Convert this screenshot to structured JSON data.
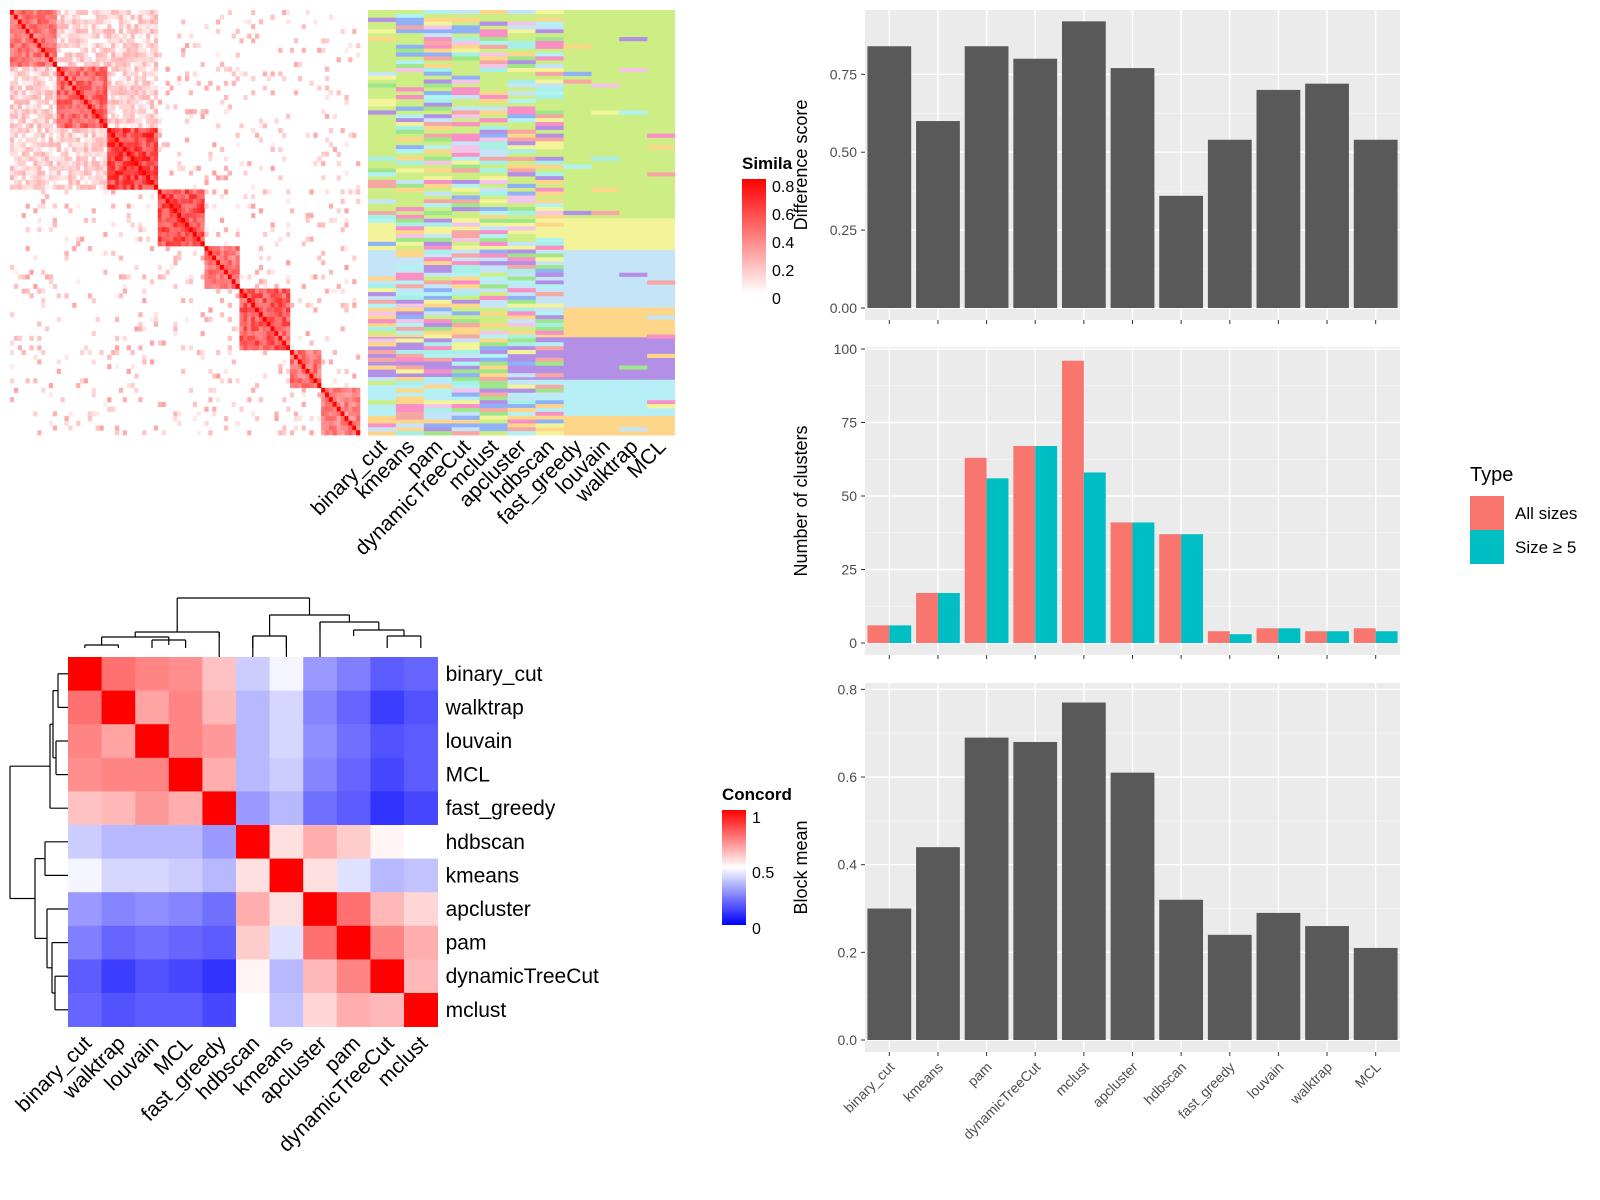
{
  "methods_similarity_order": [
    "binary_cut",
    "kmeans",
    "pam",
    "dynamicTreeCut",
    "mclust",
    "apcluster",
    "hdbscan",
    "fast_greedy",
    "louvain",
    "walktrap",
    "MCL"
  ],
  "similarity_legend": {
    "title": "Simila",
    "ticks": [
      "0.8",
      "0.6",
      "0.4",
      "0.2",
      "0"
    ],
    "colors": [
      "#ffffff",
      "#ff0000"
    ]
  },
  "concordance": {
    "legend": {
      "title": "Concord",
      "ticks": [
        "1",
        "0.5",
        "0"
      ],
      "colors": [
        "#0000ff",
        "#ffffff",
        "#ff0000"
      ]
    },
    "row_labels": [
      "binary_cut",
      "walktrap",
      "louvain",
      "MCL",
      "fast_greedy",
      "hdbscan",
      "kmeans",
      "apcluster",
      "pam",
      "dynamicTreeCut",
      "mclust"
    ],
    "col_labels": [
      "binary_cut",
      "walktrap",
      "louvain",
      "MCL",
      "fast_greedy",
      "hdbscan",
      "kmeans",
      "apcluster",
      "pam",
      "dynamicTreeCut",
      "mclust"
    ]
  },
  "chart_data": [
    {
      "type": "heatmap",
      "name": "similarity-matrix",
      "legend_title": "Simila",
      "value_range": [
        0,
        0.8
      ]
    },
    {
      "type": "heatmap",
      "name": "concordance-matrix",
      "legend_title": "Concord",
      "labels": [
        "binary_cut",
        "walktrap",
        "louvain",
        "MCL",
        "fast_greedy",
        "hdbscan",
        "kmeans",
        "apcluster",
        "pam",
        "dynamicTreeCut",
        "mclust"
      ],
      "values": [
        [
          1.0,
          0.78,
          0.74,
          0.72,
          0.62,
          0.4,
          0.48,
          0.3,
          0.25,
          0.18,
          0.2
        ],
        [
          0.78,
          1.0,
          0.68,
          0.74,
          0.64,
          0.36,
          0.42,
          0.26,
          0.2,
          0.12,
          0.16
        ],
        [
          0.74,
          0.68,
          1.0,
          0.74,
          0.7,
          0.36,
          0.42,
          0.28,
          0.22,
          0.16,
          0.18
        ],
        [
          0.72,
          0.74,
          0.74,
          1.0,
          0.66,
          0.36,
          0.4,
          0.26,
          0.2,
          0.14,
          0.18
        ],
        [
          0.62,
          0.64,
          0.7,
          0.66,
          1.0,
          0.3,
          0.36,
          0.22,
          0.18,
          0.1,
          0.14
        ],
        [
          0.4,
          0.36,
          0.36,
          0.36,
          0.3,
          1.0,
          0.56,
          0.66,
          0.6,
          0.52,
          0.5
        ],
        [
          0.48,
          0.42,
          0.42,
          0.4,
          0.36,
          0.56,
          1.0,
          0.56,
          0.44,
          0.36,
          0.38
        ],
        [
          0.3,
          0.26,
          0.28,
          0.26,
          0.22,
          0.66,
          0.56,
          1.0,
          0.78,
          0.64,
          0.58
        ],
        [
          0.25,
          0.2,
          0.22,
          0.2,
          0.18,
          0.6,
          0.44,
          0.78,
          1.0,
          0.74,
          0.66
        ],
        [
          0.18,
          0.12,
          0.16,
          0.14,
          0.1,
          0.52,
          0.36,
          0.64,
          0.74,
          1.0,
          0.64
        ],
        [
          0.2,
          0.16,
          0.18,
          0.18,
          0.14,
          0.5,
          0.38,
          0.58,
          0.66,
          0.64,
          1.0
        ]
      ],
      "value_range": [
        0,
        1
      ]
    },
    {
      "type": "bar",
      "name": "difference-score",
      "categories": [
        "binary_cut",
        "kmeans",
        "pam",
        "dynamicTreeCut",
        "mclust",
        "apcluster",
        "hdbscan",
        "fast_greedy",
        "louvain",
        "walktrap",
        "MCL"
      ],
      "values": [
        0.84,
        0.6,
        0.84,
        0.8,
        0.92,
        0.77,
        0.36,
        0.54,
        0.7,
        0.72,
        0.54
      ],
      "xlabel": "",
      "ylabel": "Difference score",
      "ylim": [
        0,
        0.95
      ],
      "yticks": [
        "0.00",
        "0.25",
        "0.50",
        "0.75"
      ]
    },
    {
      "type": "bar",
      "name": "number-of-clusters",
      "categories": [
        "binary_cut",
        "kmeans",
        "pam",
        "dynamicTreeCut",
        "mclust",
        "apcluster",
        "hdbscan",
        "fast_greedy",
        "louvain",
        "walktrap",
        "MCL"
      ],
      "series": [
        {
          "name": "All sizes",
          "color": "#F8766D",
          "values": [
            6,
            17,
            63,
            67,
            96,
            41,
            37,
            4,
            5,
            4,
            5
          ]
        },
        {
          "name": "Size ≥ 5",
          "color": "#00BFC4",
          "values": [
            6,
            17,
            56,
            67,
            58,
            41,
            37,
            3,
            5,
            4,
            4
          ]
        }
      ],
      "xlabel": "",
      "ylabel": "Number of clusters",
      "ylim": [
        0,
        100
      ],
      "yticks": [
        "0",
        "25",
        "50",
        "75",
        "100"
      ],
      "legend_title": "Type",
      "legend_position": "right"
    },
    {
      "type": "bar",
      "name": "block-mean",
      "categories": [
        "binary_cut",
        "kmeans",
        "pam",
        "dynamicTreeCut",
        "mclust",
        "apcluster",
        "hdbscan",
        "fast_greedy",
        "louvain",
        "walktrap",
        "MCL"
      ],
      "values": [
        0.3,
        0.44,
        0.69,
        0.68,
        0.77,
        0.61,
        0.32,
        0.24,
        0.29,
        0.26,
        0.21
      ],
      "xlabel": "",
      "ylabel": "Block mean",
      "ylim": [
        0,
        0.8
      ],
      "yticks": [
        "0.0",
        "0.2",
        "0.4",
        "0.6",
        "0.8"
      ]
    }
  ]
}
